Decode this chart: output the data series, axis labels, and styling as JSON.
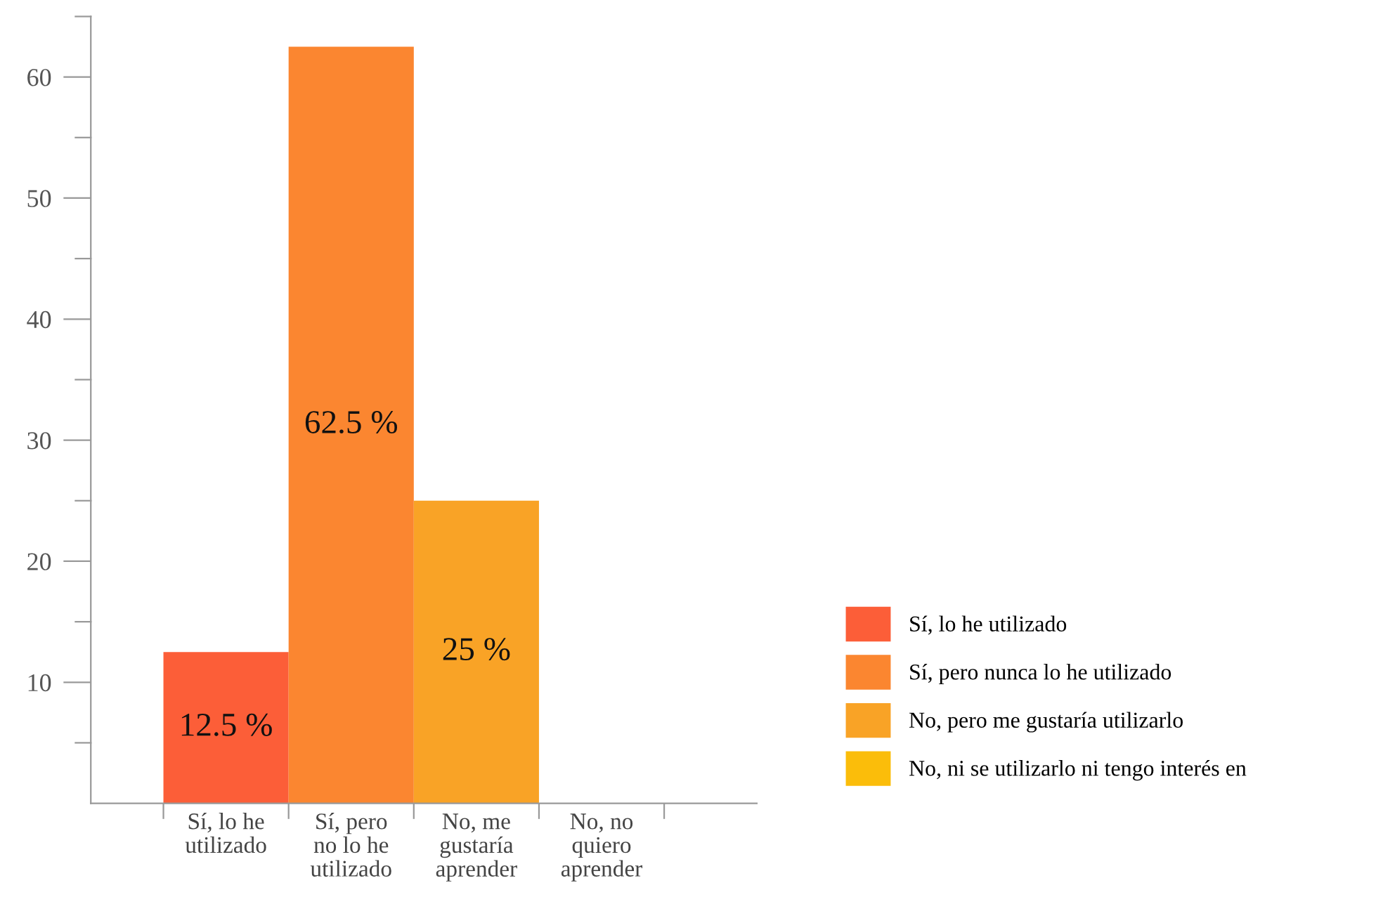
{
  "chart_data": {
    "type": "bar",
    "categories": [
      "Sí, lo he\nutilizado",
      "Sí, pero\nno lo he\nutilizado",
      "No, me\ngustaría\naprender",
      "No, no\nquiero\naprender"
    ],
    "series": [
      {
        "name": "Sí, lo he utilizado",
        "color": "#fc5e38",
        "values": [
          12.5,
          null,
          null,
          null
        ],
        "value_labels": [
          "12.5 %",
          null,
          null,
          null
        ]
      },
      {
        "name": "Sí, pero nunca lo he utilizado",
        "color": "#fb8630",
        "values": [
          null,
          62.5,
          null,
          null
        ],
        "value_labels": [
          null,
          "62.5 %",
          null,
          null
        ]
      },
      {
        "name": "No, pero me gustaría utilizarlo",
        "color": "#f9a326",
        "values": [
          null,
          null,
          25,
          null
        ],
        "value_labels": [
          null,
          null,
          "25 %",
          null
        ]
      },
      {
        "name": "No, ni se utilizarlo ni tengo interés en",
        "color": "#fbbd0a",
        "values": [
          null,
          null,
          null,
          0
        ],
        "value_labels": [
          null,
          null,
          null,
          null
        ]
      }
    ],
    "ylim": [
      0,
      65
    ],
    "yticks": [
      {
        "value": 5,
        "label": null
      },
      10,
      {
        "value": 15,
        "label": null
      },
      20,
      {
        "value": 25,
        "label": null
      },
      30,
      {
        "value": 35,
        "label": null
      },
      40,
      {
        "value": 45,
        "label": null
      },
      50,
      {
        "value": 55,
        "label": null
      },
      60,
      {
        "value": 65,
        "label": null
      }
    ],
    "grid": false,
    "legend": "right"
  }
}
